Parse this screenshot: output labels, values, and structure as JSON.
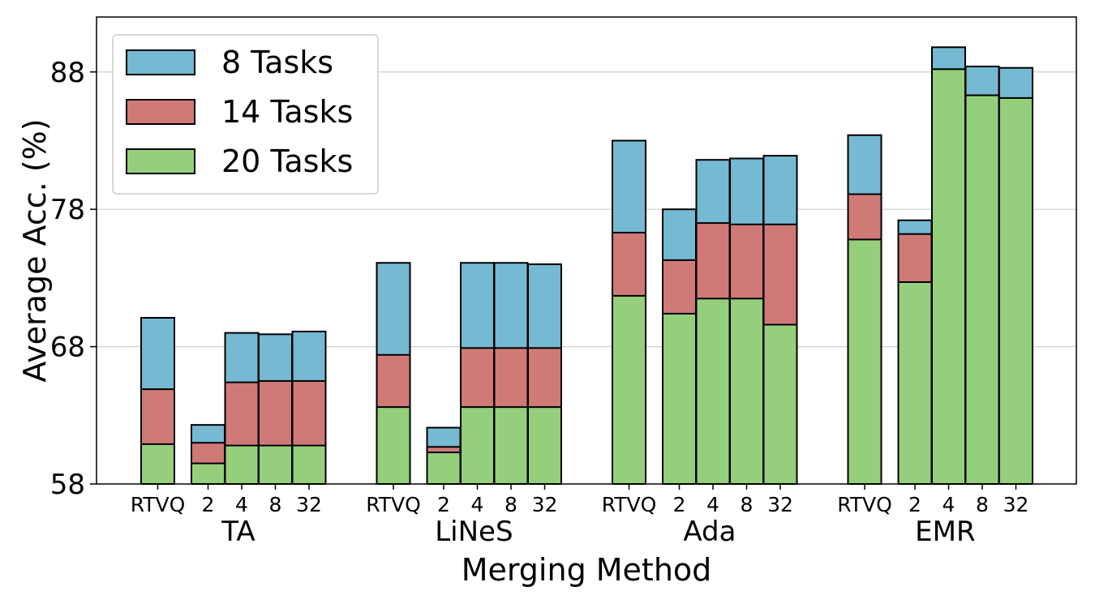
{
  "chart_data": {
    "type": "bar",
    "stacked_overlay": true,
    "xlabel": "Merging Method",
    "ylabel": "Average Acc. (%)",
    "ylim": [
      58,
      92
    ],
    "yticks": [
      58,
      68,
      78,
      88
    ],
    "grid": "y",
    "legend_position": "top-left",
    "groups": [
      {
        "label": "TA",
        "bars": [
          {
            "label": "RTVQ",
            "values": [
              70.1,
              64.9,
              60.9
            ]
          },
          {
            "label": "2",
            "values": [
              62.3,
              61.0,
              59.5
            ]
          },
          {
            "label": "4",
            "values": [
              69.0,
              65.4,
              60.8
            ]
          },
          {
            "label": "8",
            "values": [
              68.9,
              65.5,
              60.8
            ]
          },
          {
            "label": "32",
            "values": [
              69.1,
              65.5,
              60.8
            ]
          }
        ]
      },
      {
        "label": "LiNeS",
        "bars": [
          {
            "label": "RTVQ",
            "values": [
              74.1,
              67.4,
              63.6
            ]
          },
          {
            "label": "2",
            "values": [
              62.1,
              60.7,
              60.3
            ]
          },
          {
            "label": "4",
            "values": [
              74.1,
              67.9,
              63.6
            ]
          },
          {
            "label": "8",
            "values": [
              74.1,
              67.9,
              63.6
            ]
          },
          {
            "label": "32",
            "values": [
              74.0,
              67.9,
              63.6
            ]
          }
        ]
      },
      {
        "label": "Ada",
        "bars": [
          {
            "label": "RTVQ",
            "values": [
              83.0,
              76.3,
              71.7
            ]
          },
          {
            "label": "2",
            "values": [
              78.0,
              74.3,
              70.4
            ]
          },
          {
            "label": "4",
            "values": [
              81.6,
              77.0,
              71.5
            ]
          },
          {
            "label": "8",
            "values": [
              81.7,
              76.9,
              71.5
            ]
          },
          {
            "label": "32",
            "values": [
              81.9,
              76.9,
              69.6
            ]
          }
        ]
      },
      {
        "label": "EMR",
        "bars": [
          {
            "label": "RTVQ",
            "values": [
              83.4,
              79.1,
              75.8
            ]
          },
          {
            "label": "2",
            "values": [
              77.2,
              76.2,
              72.7
            ]
          },
          {
            "label": "4",
            "values": [
              89.8,
              88.2,
              88.2
            ]
          },
          {
            "label": "8",
            "values": [
              88.4,
              86.3,
              86.3
            ]
          },
          {
            "label": "32",
            "values": [
              88.3,
              86.1,
              86.1
            ]
          }
        ]
      }
    ],
    "series": [
      {
        "name": "8 Tasks",
        "color": "#76b9d2"
      },
      {
        "name": "14 Tasks",
        "color": "#d07a77"
      },
      {
        "name": "20 Tasks",
        "color": "#96cf7c"
      }
    ]
  }
}
